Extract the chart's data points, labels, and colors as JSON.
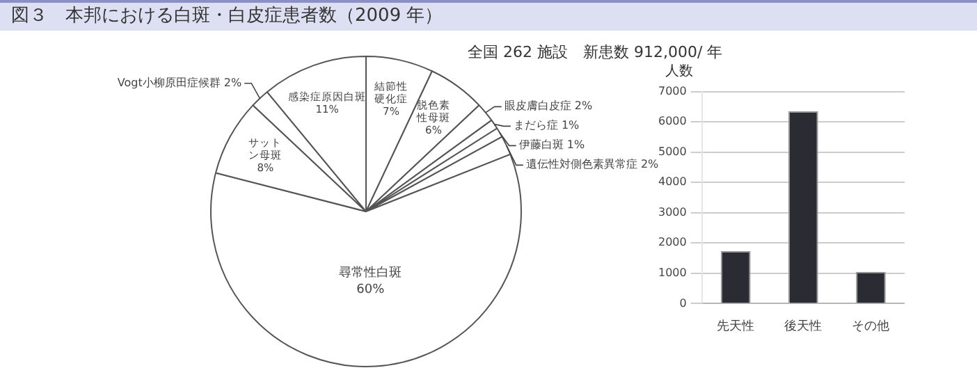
{
  "chart_data": [
    {
      "type": "pie",
      "title": "図３　本邦における白斑・白皮症患者数（2009 年）",
      "subtitle": "全国 262 施設　新患数 912,000/ 年",
      "categories": [
        "結節性硬化症",
        "脱色素性母斑",
        "眼皮膚白皮症",
        "まだら症",
        "伊藤白斑",
        "遺伝性対側色素異常症",
        "尋常性白斑",
        "サットン母斑",
        "Vogt小柳原田症候群",
        "感染症原因白斑"
      ],
      "values": [
        7,
        6,
        2,
        1,
        1,
        2,
        60,
        8,
        2,
        11
      ],
      "value_labels": [
        "7%",
        "6%",
        "2%",
        "1%",
        "1%",
        "2%",
        "60%",
        "8%",
        "2%",
        "11%"
      ],
      "colors": [
        "#ffffff",
        "#ffffff",
        "#ffffff",
        "#ffffff",
        "#ffffff",
        "#ffffff",
        "#ffffff",
        "#ffffff",
        "#ffffff",
        "#ffffff"
      ]
    },
    {
      "type": "bar",
      "ylabel": "人数",
      "categories": [
        "先天性",
        "後天性",
        "その他"
      ],
      "values": [
        1730,
        6350,
        1050
      ],
      "color": "#2b2b33",
      "ylim": [
        0,
        7000
      ],
      "yticks": [
        {
          "value": 0,
          "label": "0"
        },
        {
          "value": 1000,
          "label": "1000"
        },
        {
          "value": 2000,
          "label": "2000"
        },
        {
          "value": 3000,
          "label": "3000"
        },
        {
          "value": 4000,
          "label": "4000"
        },
        {
          "value": 5000,
          "label": "5000"
        },
        {
          "value": 6000,
          "label": "6000"
        },
        {
          "value": 7000,
          "label": "7000"
        }
      ],
      "grid": "y"
    }
  ]
}
